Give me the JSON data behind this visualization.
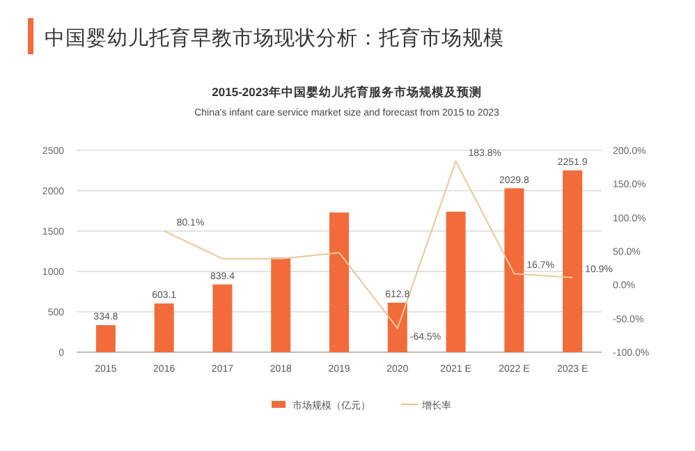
{
  "chart_data": {
    "type": "bar",
    "annotations": [
      "中国婴幼儿托育早教市场现状分析：托育市场规模"
    ],
    "title": "2015-2023年中国婴幼儿托育服务市场规模及预测",
    "subtitle": "China's infant care service market size and forecast from 2015 to 2023",
    "categories": [
      "2015",
      "2016",
      "2017",
      "2018",
      "2019",
      "2020",
      "2021 E",
      "2022 E",
      "2023 E"
    ],
    "series": [
      {
        "name": "市场规模（亿元）",
        "color": "#f26b3a",
        "values": [
          334.8,
          603.1,
          839.4,
          1170,
          1730,
          612.8,
          1740,
          2029.8,
          2251.9
        ],
        "value_labels": [
          "334.8",
          "603.1",
          "839.4",
          null,
          null,
          "612.8",
          null,
          "2029.8",
          "2251.9"
        ]
      },
      {
        "name": "增长率",
        "type": "line",
        "axis": "y2",
        "color": "#e9c89c",
        "values": [
          null,
          80.1,
          39,
          39,
          48,
          -64.5,
          183.8,
          16.7,
          10.9
        ],
        "value_labels": [
          null,
          "80.1%",
          null,
          null,
          null,
          "-64.5%",
          "183.8%",
          "16.7%",
          "10.9%"
        ]
      }
    ],
    "ylim": [
      0,
      2500
    ],
    "yticks": [
      0,
      500,
      1000,
      1500,
      2000,
      2500
    ],
    "y2lim": [
      -100,
      200
    ],
    "y2ticks": [
      {
        "value": -100,
        "label": "-100.0%"
      },
      {
        "value": -50,
        "label": "-50.0%"
      },
      {
        "value": 0,
        "label": "0.0%"
      },
      {
        "value": 50,
        "label": "50.0%"
      },
      {
        "value": 100,
        "label": "100.0%"
      },
      {
        "value": 150,
        "label": "150.0%"
      },
      {
        "value": 200,
        "label": "200.0%"
      }
    ],
    "grid": "y",
    "legend": "bottom right",
    "marker": "none",
    "line_style": "solid"
  }
}
